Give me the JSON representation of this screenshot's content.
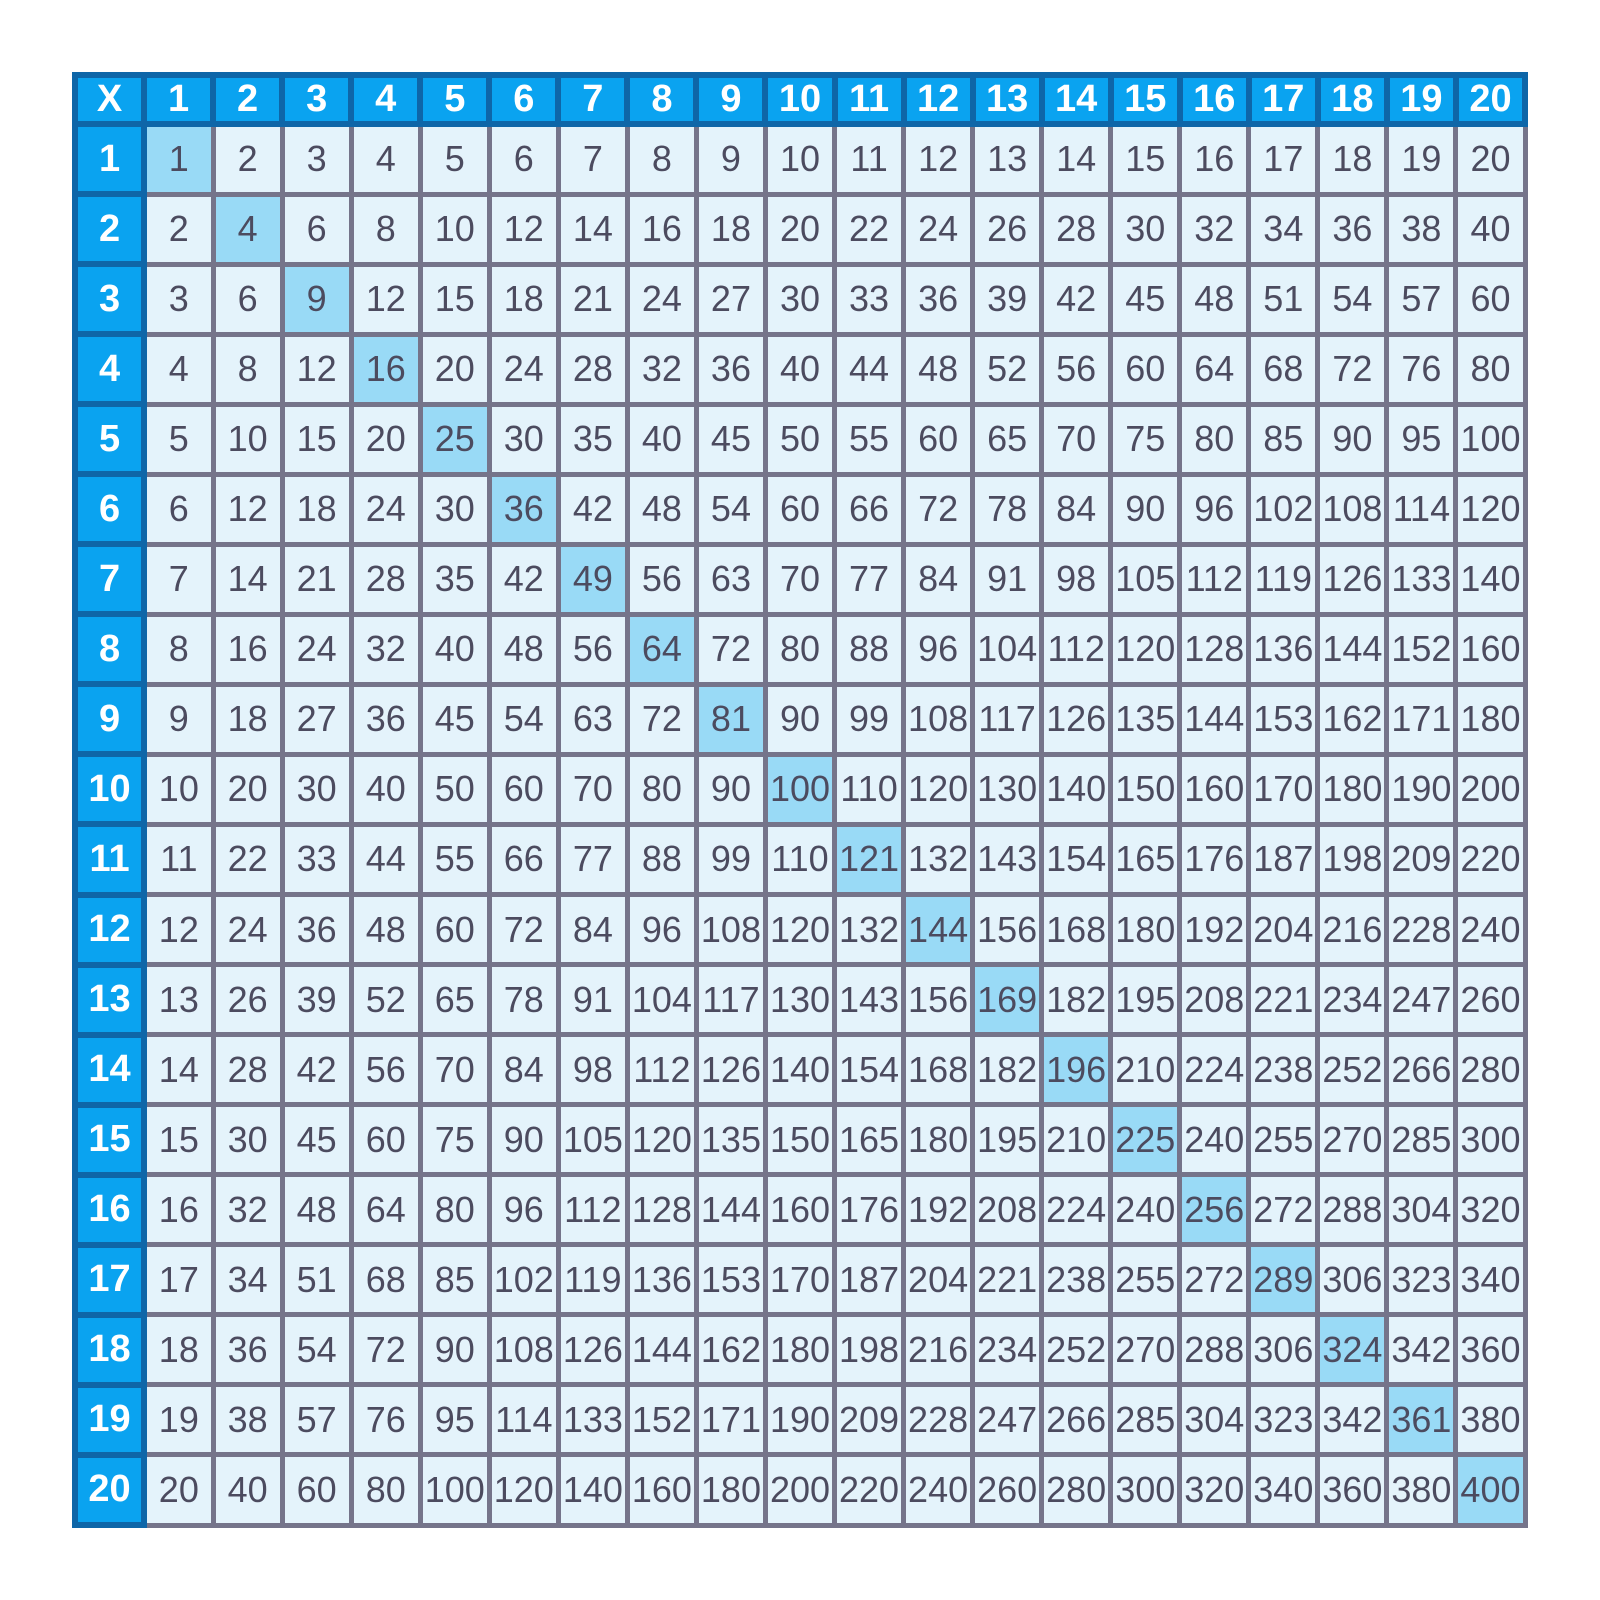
{
  "table": {
    "corner_label": "X",
    "column_headers": [
      "1",
      "2",
      "3",
      "4",
      "5",
      "6",
      "7",
      "8",
      "9",
      "10",
      "11",
      "12",
      "13",
      "14",
      "15",
      "16",
      "17",
      "18",
      "19",
      "20"
    ],
    "row_headers": [
      "1",
      "2",
      "3",
      "4",
      "5",
      "6",
      "7",
      "8",
      "9",
      "10",
      "11",
      "12",
      "13",
      "14",
      "15",
      "16",
      "17",
      "18",
      "19",
      "20"
    ],
    "rows": [
      [
        1,
        2,
        3,
        4,
        5,
        6,
        7,
        8,
        9,
        10,
        11,
        12,
        13,
        14,
        15,
        16,
        17,
        18,
        19,
        20
      ],
      [
        2,
        4,
        6,
        8,
        10,
        12,
        14,
        16,
        18,
        20,
        22,
        24,
        26,
        28,
        30,
        32,
        34,
        36,
        38,
        40
      ],
      [
        3,
        6,
        9,
        12,
        15,
        18,
        21,
        24,
        27,
        30,
        33,
        36,
        39,
        42,
        45,
        48,
        51,
        54,
        57,
        60
      ],
      [
        4,
        8,
        12,
        16,
        20,
        24,
        28,
        32,
        36,
        40,
        44,
        48,
        52,
        56,
        60,
        64,
        68,
        72,
        76,
        80
      ],
      [
        5,
        10,
        15,
        20,
        25,
        30,
        35,
        40,
        45,
        50,
        55,
        60,
        65,
        70,
        75,
        80,
        85,
        90,
        95,
        100
      ],
      [
        6,
        12,
        18,
        24,
        30,
        36,
        42,
        48,
        54,
        60,
        66,
        72,
        78,
        84,
        90,
        96,
        102,
        108,
        114,
        120
      ],
      [
        7,
        14,
        21,
        28,
        35,
        42,
        49,
        56,
        63,
        70,
        77,
        84,
        91,
        98,
        105,
        112,
        119,
        126,
        133,
        140
      ],
      [
        8,
        16,
        24,
        32,
        40,
        48,
        56,
        64,
        72,
        80,
        88,
        96,
        104,
        112,
        120,
        128,
        136,
        144,
        152,
        160
      ],
      [
        9,
        18,
        27,
        36,
        45,
        54,
        63,
        72,
        81,
        90,
        99,
        108,
        117,
        126,
        135,
        144,
        153,
        162,
        171,
        180
      ],
      [
        10,
        20,
        30,
        40,
        50,
        60,
        70,
        80,
        90,
        100,
        110,
        120,
        130,
        140,
        150,
        160,
        170,
        180,
        190,
        200
      ],
      [
        11,
        22,
        33,
        44,
        55,
        66,
        77,
        88,
        99,
        110,
        121,
        132,
        143,
        154,
        165,
        176,
        187,
        198,
        209,
        220
      ],
      [
        12,
        24,
        36,
        48,
        60,
        72,
        84,
        96,
        108,
        120,
        132,
        144,
        156,
        168,
        180,
        192,
        204,
        216,
        228,
        240
      ],
      [
        13,
        26,
        39,
        52,
        65,
        78,
        91,
        104,
        117,
        130,
        143,
        156,
        169,
        182,
        195,
        208,
        221,
        234,
        247,
        260
      ],
      [
        14,
        28,
        42,
        56,
        70,
        84,
        98,
        112,
        126,
        140,
        154,
        168,
        182,
        196,
        210,
        224,
        238,
        252,
        266,
        280
      ],
      [
        15,
        30,
        45,
        60,
        75,
        90,
        105,
        120,
        135,
        150,
        165,
        180,
        195,
        210,
        225,
        240,
        255,
        270,
        285,
        300
      ],
      [
        16,
        32,
        48,
        64,
        80,
        96,
        112,
        128,
        144,
        160,
        176,
        192,
        208,
        224,
        240,
        256,
        272,
        288,
        304,
        320
      ],
      [
        17,
        34,
        51,
        68,
        85,
        102,
        119,
        136,
        153,
        170,
        187,
        204,
        221,
        238,
        255,
        272,
        289,
        306,
        323,
        340
      ],
      [
        18,
        36,
        54,
        72,
        90,
        108,
        126,
        144,
        162,
        180,
        198,
        216,
        234,
        252,
        270,
        288,
        306,
        324,
        342,
        360
      ],
      [
        19,
        38,
        57,
        76,
        95,
        114,
        133,
        152,
        171,
        190,
        209,
        228,
        247,
        266,
        285,
        304,
        323,
        342,
        361,
        380
      ],
      [
        20,
        40,
        60,
        80,
        100,
        120,
        140,
        160,
        180,
        200,
        220,
        240,
        260,
        280,
        300,
        320,
        340,
        360,
        380,
        400
      ]
    ],
    "highlight_rule": "diagonal perfect squares",
    "colors": {
      "header_bg": "#0AA3F0",
      "header_border": "#0E66A8",
      "header_text": "#FFFFFF",
      "cell_bg": "#E4F3FB",
      "cell_border": "#75748A",
      "highlight_bg": "#99DAF6",
      "cell_text": "#4C4B5F",
      "page_bg": "#FFFFFF"
    }
  }
}
